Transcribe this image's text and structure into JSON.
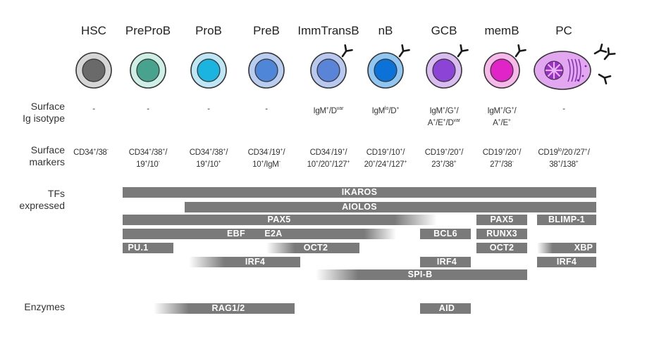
{
  "stages": [
    {
      "name": "HSC",
      "ig": "-",
      "markers": "CD34^{+}/38^{-}"
    },
    {
      "name": "PreProB",
      "ig": "-",
      "markers": "CD34^{+}/38^{+}/\n19^{+}/10^{-}"
    },
    {
      "name": "ProB",
      "ig": "-",
      "markers": "CD34^{+}/38^{+}/\n19^{+}/10^{+}"
    },
    {
      "name": "PreB",
      "ig": "-",
      "markers": "CD34^{-}/19^{+}/\n10^{+}/IgM^{-}"
    },
    {
      "name": "ImmTransB",
      "ig": "IgM^{+}/D^{var}",
      "markers": "CD34^{-}/19^{+}/\n10^{+}/20^{+}/127^{+}"
    },
    {
      "name": "nB",
      "ig": "IgM^{lo}/D^{+}",
      "markers": "CD19^{+}/10^{+}/\n20^{+}/24^{+}/127^{+}"
    },
    {
      "name": "GCB",
      "ig": "IgM^{+}/G^{+}/\nA^{+}/E^{+}/D^{var}",
      "markers": "CD19^{+}/20^{+}/\n23^{+}/38^{+}"
    },
    {
      "name": "memB",
      "ig": "IgM^{+}/G^{+}/\nA^{+}/E^{+}",
      "markers": "CD19^{+}/20^{+}/\n27^{+}/38^{-}"
    },
    {
      "name": "PC",
      "ig": "-",
      "markers": "CD19^{lo}/20^{-}/27^{+}/\n38^{+}/138^{+}"
    }
  ],
  "row_labels": {
    "ig": "Surface\nIg isotype",
    "markers": "Surface\nmarkers",
    "tfs": "TFs\nexpressed",
    "enzymes": "Enzymes"
  },
  "bars": [
    {
      "label": "IKAROS"
    },
    {
      "label": "AIOLOS"
    },
    {
      "label": "PAX5"
    },
    {
      "label": "PAX5"
    },
    {
      "label": "BLIMP-1"
    },
    {
      "label": "EBF"
    },
    {
      "label": "E2A"
    },
    {
      "label": "BCL6"
    },
    {
      "label": "RUNX3"
    },
    {
      "label": "PU.1"
    },
    {
      "label": "OCT2"
    },
    {
      "label": "OCT2"
    },
    {
      "label": "XBP"
    },
    {
      "label": "IRF4"
    },
    {
      "label": "IRF4"
    },
    {
      "label": "IRF4"
    },
    {
      "label": "SPI-B"
    },
    {
      "label": "RAG1/2"
    },
    {
      "label": "AID"
    }
  ],
  "colors": {
    "bar": "#7a7a7a",
    "antibody": "#1a1a1a"
  }
}
